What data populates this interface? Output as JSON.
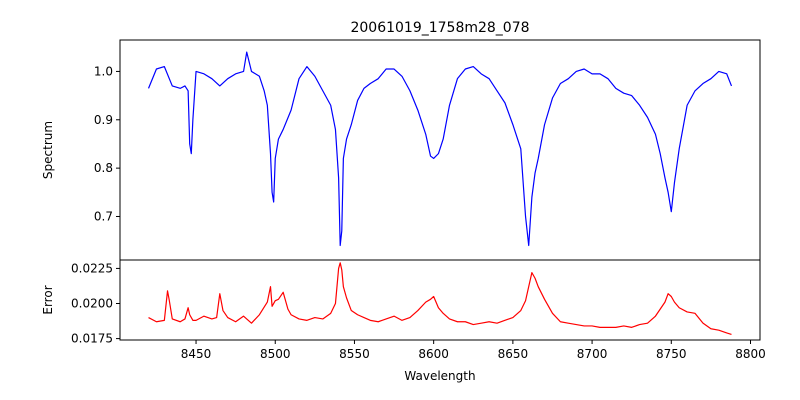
{
  "chart_data": {
    "type": "line",
    "title": "20061019_1758m28_078",
    "xlabel": "Wavelength",
    "xlim": [
      8402,
      8806
    ],
    "xticks": [
      8450,
      8500,
      8550,
      8600,
      8650,
      8700,
      8750,
      8800
    ],
    "xtick_labels": [
      "8450",
      "8500",
      "8550",
      "8600",
      "8650",
      "8700",
      "8750",
      "8800"
    ],
    "panels": [
      {
        "ylabel": "Spectrum",
        "ylim": [
          0.61,
          1.065
        ],
        "yticks": [
          0.7,
          0.8,
          0.9,
          1.0
        ],
        "ytick_labels": [
          "0.7",
          "0.8",
          "0.9",
          "1.0"
        ],
        "series": [
          {
            "color": "#0000ff",
            "x": [
              8420,
              8425,
              8430,
              8435,
              8440,
              8443,
              8445,
              8446,
              8447,
              8448,
              8450,
              8455,
              8460,
              8465,
              8470,
              8475,
              8480,
              8482,
              8485,
              8490,
              8493,
              8495,
              8497,
              8498,
              8499,
              8500,
              8502,
              8505,
              8510,
              8515,
              8520,
              8525,
              8530,
              8535,
              8538,
              8540,
              8541,
              8542,
              8543,
              8545,
              8548,
              8552,
              8556,
              8560,
              8565,
              8570,
              8575,
              8580,
              8585,
              8590,
              8595,
              8598,
              8600,
              8603,
              8606,
              8610,
              8615,
              8620,
              8625,
              8630,
              8635,
              8640,
              8645,
              8650,
              8655,
              8658,
              8660,
              8662,
              8664,
              8666,
              8670,
              8675,
              8680,
              8685,
              8690,
              8695,
              8700,
              8705,
              8710,
              8715,
              8720,
              8725,
              8730,
              8735,
              8740,
              8743,
              8746,
              8748,
              8750,
              8752,
              8755,
              8760,
              8765,
              8770,
              8775,
              8780,
              8785,
              8788
            ],
            "values": [
              0.965,
              1.005,
              1.01,
              0.97,
              0.965,
              0.97,
              0.96,
              0.85,
              0.83,
              0.9,
              1.0,
              0.995,
              0.985,
              0.97,
              0.985,
              0.995,
              1.0,
              1.04,
              1.0,
              0.99,
              0.96,
              0.93,
              0.83,
              0.75,
              0.73,
              0.82,
              0.86,
              0.88,
              0.92,
              0.985,
              1.01,
              0.99,
              0.96,
              0.93,
              0.88,
              0.78,
              0.64,
              0.67,
              0.82,
              0.86,
              0.89,
              0.94,
              0.965,
              0.975,
              0.985,
              1.005,
              1.005,
              0.99,
              0.96,
              0.92,
              0.87,
              0.825,
              0.82,
              0.83,
              0.86,
              0.93,
              0.985,
              1.005,
              1.01,
              0.995,
              0.985,
              0.96,
              0.935,
              0.89,
              0.84,
              0.7,
              0.64,
              0.74,
              0.79,
              0.82,
              0.89,
              0.945,
              0.975,
              0.985,
              1.0,
              1.005,
              0.995,
              0.995,
              0.985,
              0.965,
              0.955,
              0.95,
              0.93,
              0.905,
              0.87,
              0.83,
              0.78,
              0.75,
              0.71,
              0.77,
              0.84,
              0.93,
              0.96,
              0.975,
              0.985,
              1.0,
              0.995,
              0.97
            ]
          }
        ]
      },
      {
        "ylabel": "Error",
        "ylim": [
          0.0174,
          0.0231
        ],
        "yticks": [
          0.0175,
          0.02,
          0.0225
        ],
        "ytick_labels": [
          "0.0175",
          "0.0200",
          "0.0225"
        ],
        "series": [
          {
            "color": "#ff0000",
            "x": [
              8420,
              8425,
              8430,
              8432,
              8433,
              8435,
              8440,
              8443,
              8445,
              8446,
              8448,
              8450,
              8455,
              8460,
              8463,
              8465,
              8467,
              8470,
              8475,
              8480,
              8485,
              8490,
              8495,
              8497,
              8498,
              8500,
              8502,
              8505,
              8508,
              8510,
              8515,
              8520,
              8525,
              8530,
              8535,
              8538,
              8540,
              8541,
              8542,
              8543,
              8545,
              8548,
              8552,
              8556,
              8560,
              8565,
              8570,
              8575,
              8580,
              8585,
              8590,
              8595,
              8598,
              8600,
              8603,
              8606,
              8610,
              8615,
              8620,
              8625,
              8630,
              8635,
              8640,
              8645,
              8650,
              8655,
              8658,
              8660,
              8662,
              8664,
              8666,
              8670,
              8675,
              8680,
              8685,
              8690,
              8695,
              8700,
              8705,
              8710,
              8715,
              8720,
              8725,
              8730,
              8735,
              8740,
              8743,
              8746,
              8748,
              8750,
              8752,
              8755,
              8760,
              8765,
              8770,
              8775,
              8780,
              8785,
              8788
            ],
            "values": [
              0.019,
              0.0187,
              0.0188,
              0.0209,
              0.0203,
              0.0189,
              0.0187,
              0.0189,
              0.0197,
              0.0192,
              0.0188,
              0.0188,
              0.0191,
              0.0189,
              0.019,
              0.0207,
              0.0195,
              0.019,
              0.0187,
              0.0191,
              0.0186,
              0.0192,
              0.0201,
              0.0212,
              0.0198,
              0.0202,
              0.0203,
              0.0208,
              0.0196,
              0.0192,
              0.0189,
              0.0188,
              0.019,
              0.0189,
              0.0193,
              0.02,
              0.0225,
              0.0229,
              0.0224,
              0.0212,
              0.0204,
              0.0195,
              0.0192,
              0.019,
              0.0188,
              0.0187,
              0.0189,
              0.0191,
              0.0188,
              0.019,
              0.0195,
              0.0201,
              0.0203,
              0.0205,
              0.0197,
              0.0193,
              0.0189,
              0.0187,
              0.0187,
              0.0185,
              0.0186,
              0.0187,
              0.0186,
              0.0188,
              0.019,
              0.0195,
              0.0202,
              0.0212,
              0.0222,
              0.0218,
              0.0212,
              0.0203,
              0.0193,
              0.0187,
              0.0186,
              0.0185,
              0.0184,
              0.0184,
              0.0183,
              0.0183,
              0.0183,
              0.0184,
              0.0183,
              0.0185,
              0.0186,
              0.0191,
              0.0196,
              0.0201,
              0.0207,
              0.0205,
              0.0201,
              0.0197,
              0.0194,
              0.0193,
              0.0186,
              0.0182,
              0.0181,
              0.0179,
              0.0178
            ]
          }
        ]
      }
    ]
  }
}
